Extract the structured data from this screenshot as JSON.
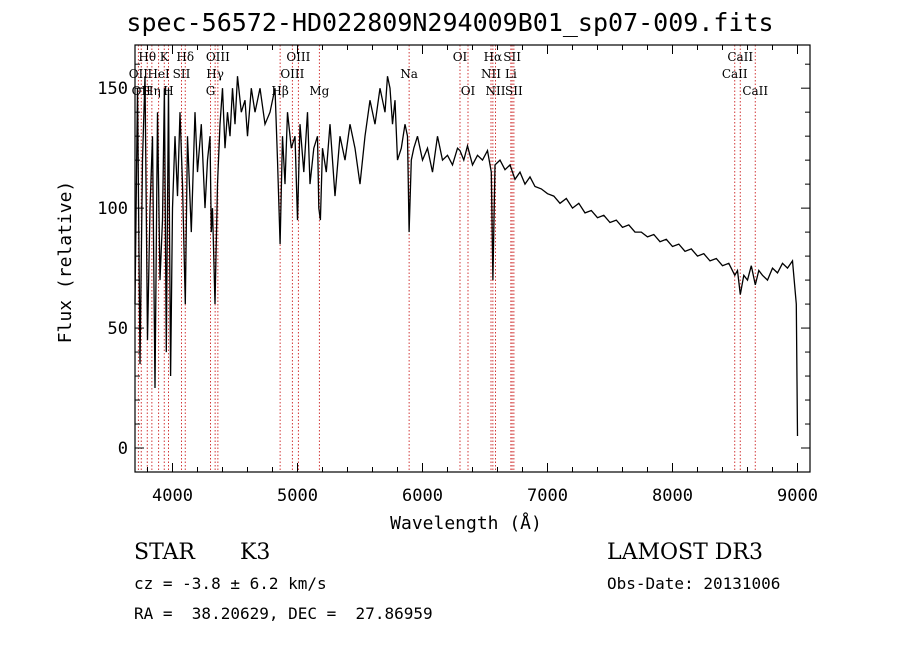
{
  "chart_data": {
    "type": "line",
    "title": "spec-56572-HD022809N294009B01_sp07-009.fits",
    "xlabel": "Wavelength (Å)",
    "ylabel": "Flux (relative)",
    "xlim": [
      3700,
      9100
    ],
    "ylim": [
      -10,
      168
    ],
    "xticks": [
      4000,
      5000,
      6000,
      7000,
      8000,
      9000
    ],
    "yticks": [
      0,
      50,
      100,
      150
    ],
    "series": [
      {
        "name": "flux",
        "x": [
          3700,
          3720,
          3740,
          3760,
          3780,
          3800,
          3820,
          3840,
          3860,
          3880,
          3900,
          3920,
          3935,
          3950,
          3968,
          3985,
          4000,
          4020,
          4040,
          4060,
          4080,
          4102,
          4120,
          4150,
          4180,
          4200,
          4230,
          4260,
          4280,
          4300,
          4310,
          4320,
          4340,
          4360,
          4380,
          4400,
          4420,
          4440,
          4460,
          4480,
          4500,
          4520,
          4550,
          4580,
          4600,
          4630,
          4660,
          4700,
          4740,
          4780,
          4820,
          4840,
          4861,
          4880,
          4900,
          4920,
          4950,
          4980,
          5000,
          5020,
          5050,
          5080,
          5100,
          5130,
          5160,
          5170,
          5183,
          5200,
          5230,
          5260,
          5300,
          5340,
          5380,
          5420,
          5460,
          5500,
          5540,
          5580,
          5620,
          5660,
          5700,
          5720,
          5740,
          5760,
          5780,
          5800,
          5830,
          5860,
          5880,
          5893,
          5910,
          5930,
          5960,
          6000,
          6040,
          6080,
          6120,
          6160,
          6200,
          6240,
          6280,
          6300,
          6330,
          6360,
          6400,
          6440,
          6480,
          6520,
          6550,
          6563,
          6580,
          6620,
          6660,
          6700,
          6740,
          6780,
          6820,
          6860,
          6900,
          6950,
          7000,
          7050,
          7100,
          7150,
          7200,
          7250,
          7300,
          7350,
          7400,
          7450,
          7500,
          7550,
          7600,
          7650,
          7700,
          7750,
          7800,
          7850,
          7900,
          7950,
          8000,
          8050,
          8100,
          8150,
          8200,
          8250,
          8300,
          8350,
          8400,
          8450,
          8498,
          8520,
          8542,
          8570,
          8600,
          8630,
          8662,
          8690,
          8720,
          8760,
          8800,
          8840,
          8880,
          8920,
          8960,
          8990,
          9000
        ],
        "values": [
          60,
          150,
          35,
          120,
          155,
          45,
          100,
          130,
          25,
          140,
          70,
          95,
          150,
          40,
          150,
          30,
          100,
          130,
          105,
          140,
          110,
          60,
          130,
          90,
          140,
          115,
          135,
          100,
          120,
          130,
          90,
          100,
          60,
          110,
          135,
          150,
          125,
          140,
          130,
          150,
          135,
          155,
          140,
          145,
          130,
          150,
          140,
          150,
          135,
          140,
          150,
          120,
          85,
          130,
          110,
          140,
          125,
          130,
          95,
          135,
          115,
          140,
          110,
          125,
          130,
          100,
          95,
          125,
          115,
          135,
          105,
          130,
          120,
          135,
          125,
          110,
          130,
          145,
          135,
          150,
          140,
          155,
          150,
          135,
          145,
          120,
          125,
          135,
          130,
          90,
          120,
          125,
          130,
          120,
          125,
          115,
          130,
          120,
          122,
          118,
          125,
          124,
          120,
          126,
          118,
          122,
          120,
          124,
          115,
          70,
          118,
          120,
          116,
          118,
          112,
          115,
          110,
          113,
          109,
          108,
          106,
          105,
          102,
          104,
          100,
          102,
          98,
          99,
          96,
          97,
          94,
          95,
          92,
          93,
          90,
          90,
          88,
          89,
          86,
          87,
          84,
          85,
          82,
          83,
          80,
          81,
          78,
          79,
          76,
          77,
          72,
          74,
          64,
          72,
          70,
          76,
          68,
          74,
          72,
          70,
          75,
          73,
          77,
          75,
          78,
          60,
          5
        ]
      }
    ],
    "lines": [
      {
        "x": 3727,
        "label": "OII",
        "row": 2
      },
      {
        "x": 3750,
        "label": "OII",
        "row": 3
      },
      {
        "x": 3798,
        "label": "Hθ",
        "row": 1
      },
      {
        "x": 3835,
        "label": "Hη",
        "row": 3
      },
      {
        "x": 3889,
        "label": "HeI",
        "row": 2
      },
      {
        "x": 3934,
        "label": "K",
        "row": 1
      },
      {
        "x": 3968,
        "label": "H",
        "row": 3
      },
      {
        "x": 4072,
        "label": "SII",
        "row": 2
      },
      {
        "x": 4102,
        "label": "Hδ",
        "row": 1
      },
      {
        "x": 4304,
        "label": "G",
        "row": 3
      },
      {
        "x": 4341,
        "label": "Hγ",
        "row": 2
      },
      {
        "x": 4363,
        "label": "OIII",
        "row": 1
      },
      {
        "x": 4861,
        "label": "Hβ",
        "row": 3
      },
      {
        "x": 4959,
        "label": "OIII",
        "row": 2
      },
      {
        "x": 5007,
        "label": "OIII",
        "row": 1
      },
      {
        "x": 5175,
        "label": "Mg",
        "row": 3
      },
      {
        "x": 5893,
        "label": "Na",
        "row": 2
      },
      {
        "x": 6300,
        "label": "OI",
        "row": 1
      },
      {
        "x": 6364,
        "label": "OI",
        "row": 3
      },
      {
        "x": 6548,
        "label": "NII",
        "row": 2
      },
      {
        "x": 6563,
        "label": "Hα",
        "row": 1
      },
      {
        "x": 6584,
        "label": "NII",
        "row": 3
      },
      {
        "x": 6707,
        "label": "Li",
        "row": 2
      },
      {
        "x": 6717,
        "label": "SII",
        "row": 1
      },
      {
        "x": 6731,
        "label": "SII",
        "row": 3
      },
      {
        "x": 8498,
        "label": "CaII",
        "row": 2
      },
      {
        "x": 8542,
        "label": "CaII",
        "row": 1
      },
      {
        "x": 8662,
        "label": "CaII",
        "row": 3
      }
    ]
  },
  "colors": {
    "axis": "#000000",
    "line": "#000000",
    "marker": "#cc2222"
  },
  "info": {
    "object_type": "STAR",
    "subclass": "K3",
    "survey": "LAMOST DR3",
    "redshift": "cz = -3.8 ± 6.2 km/s",
    "obs_date": "Obs-Date: 20131006",
    "coords": "RA =  38.20629, DEC =  27.86959"
  }
}
